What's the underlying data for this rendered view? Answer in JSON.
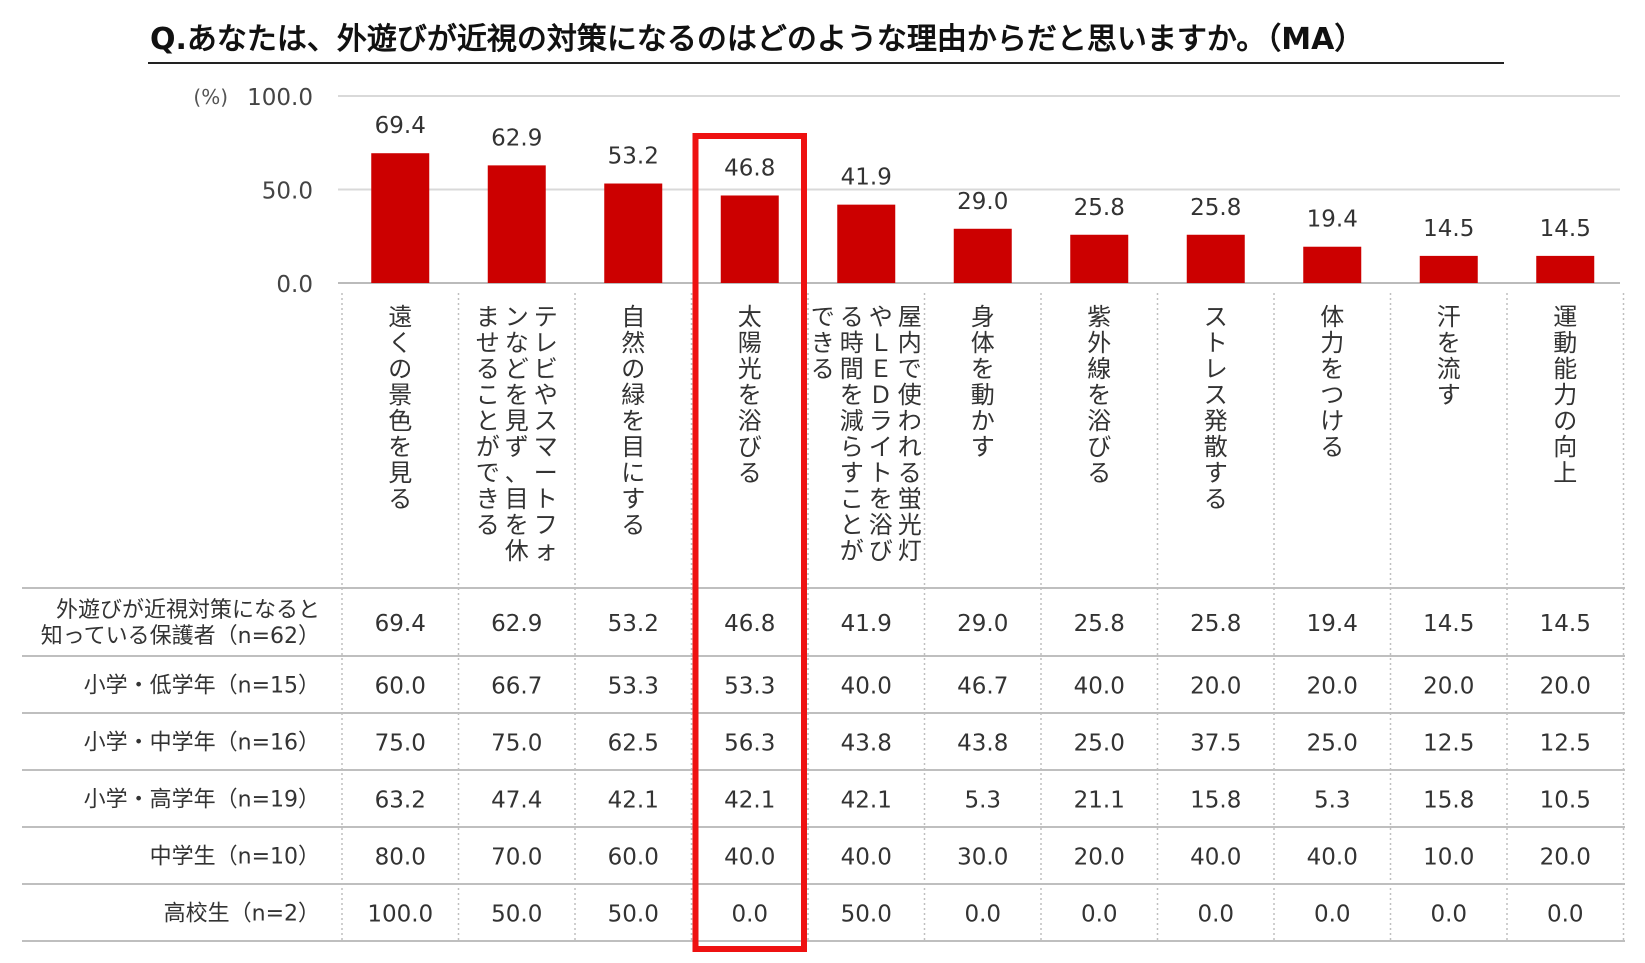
{
  "title": "Q.あなたは、外遊びが近視の対策になるのはどのような理由からだと思いますか。（MA）",
  "chart_data": {
    "type": "bar",
    "unit_label": "(%)",
    "ylim": [
      0,
      100
    ],
    "yticks": [
      "100.0",
      "50.0",
      "0.0"
    ],
    "ytick_values": [
      100,
      50,
      0
    ],
    "grid": true,
    "bar_color": "#cc0000",
    "highlight_color": "#ee1111",
    "highlight_index": 3,
    "categories": [
      [
        "遠くの景色を見る"
      ],
      [
        "テレビやスマートフォ",
        "ンなどを見ず、目を休",
        "ませることができる"
      ],
      [
        "自然の緑を目にする"
      ],
      [
        "太陽光を浴びる"
      ],
      [
        "屋内で使われる蛍光灯",
        "やＬＥＤライトを浴び",
        "る時間を減らすことが",
        "できる"
      ],
      [
        "身体を動かす"
      ],
      [
        "紫外線を浴びる"
      ],
      [
        "ストレス発散する"
      ],
      [
        "体力をつける"
      ],
      [
        "汗を流す"
      ],
      [
        "運動能力の向上"
      ]
    ],
    "values": [
      69.4,
      62.9,
      53.2,
      46.8,
      41.9,
      29.0,
      25.8,
      25.8,
      19.4,
      14.5,
      14.5
    ],
    "value_labels": [
      "69.4",
      "62.9",
      "53.2",
      "46.8",
      "41.9",
      "29.0",
      "25.8",
      "25.8",
      "19.4",
      "14.5",
      "14.5"
    ],
    "table": [
      {
        "label": [
          "外遊びが近視対策になると",
          "知っている保護者（n=62）"
        ],
        "values": [
          "69.4",
          "62.9",
          "53.2",
          "46.8",
          "41.9",
          "29.0",
          "25.8",
          "25.8",
          "19.4",
          "14.5",
          "14.5"
        ]
      },
      {
        "label": [
          "小学・低学年（n=15）"
        ],
        "values": [
          "60.0",
          "66.7",
          "53.3",
          "53.3",
          "40.0",
          "46.7",
          "40.0",
          "20.0",
          "20.0",
          "20.0",
          "20.0"
        ]
      },
      {
        "label": [
          "小学・中学年（n=16）"
        ],
        "values": [
          "75.0",
          "75.0",
          "62.5",
          "56.3",
          "43.8",
          "43.8",
          "25.0",
          "37.5",
          "25.0",
          "12.5",
          "12.5"
        ]
      },
      {
        "label": [
          "小学・高学年（n=19）"
        ],
        "values": [
          "63.2",
          "47.4",
          "42.1",
          "42.1",
          "42.1",
          "5.3",
          "21.1",
          "15.8",
          "5.3",
          "15.8",
          "10.5"
        ]
      },
      {
        "label": [
          "中学生（n=10）"
        ],
        "values": [
          "80.0",
          "70.0",
          "60.0",
          "40.0",
          "40.0",
          "30.0",
          "20.0",
          "40.0",
          "40.0",
          "10.0",
          "20.0"
        ]
      },
      {
        "label": [
          "高校生（n=2）"
        ],
        "values": [
          "100.0",
          "50.0",
          "50.0",
          "0.0",
          "50.0",
          "0.0",
          "0.0",
          "0.0",
          "0.0",
          "0.0",
          "0.0"
        ]
      }
    ]
  }
}
